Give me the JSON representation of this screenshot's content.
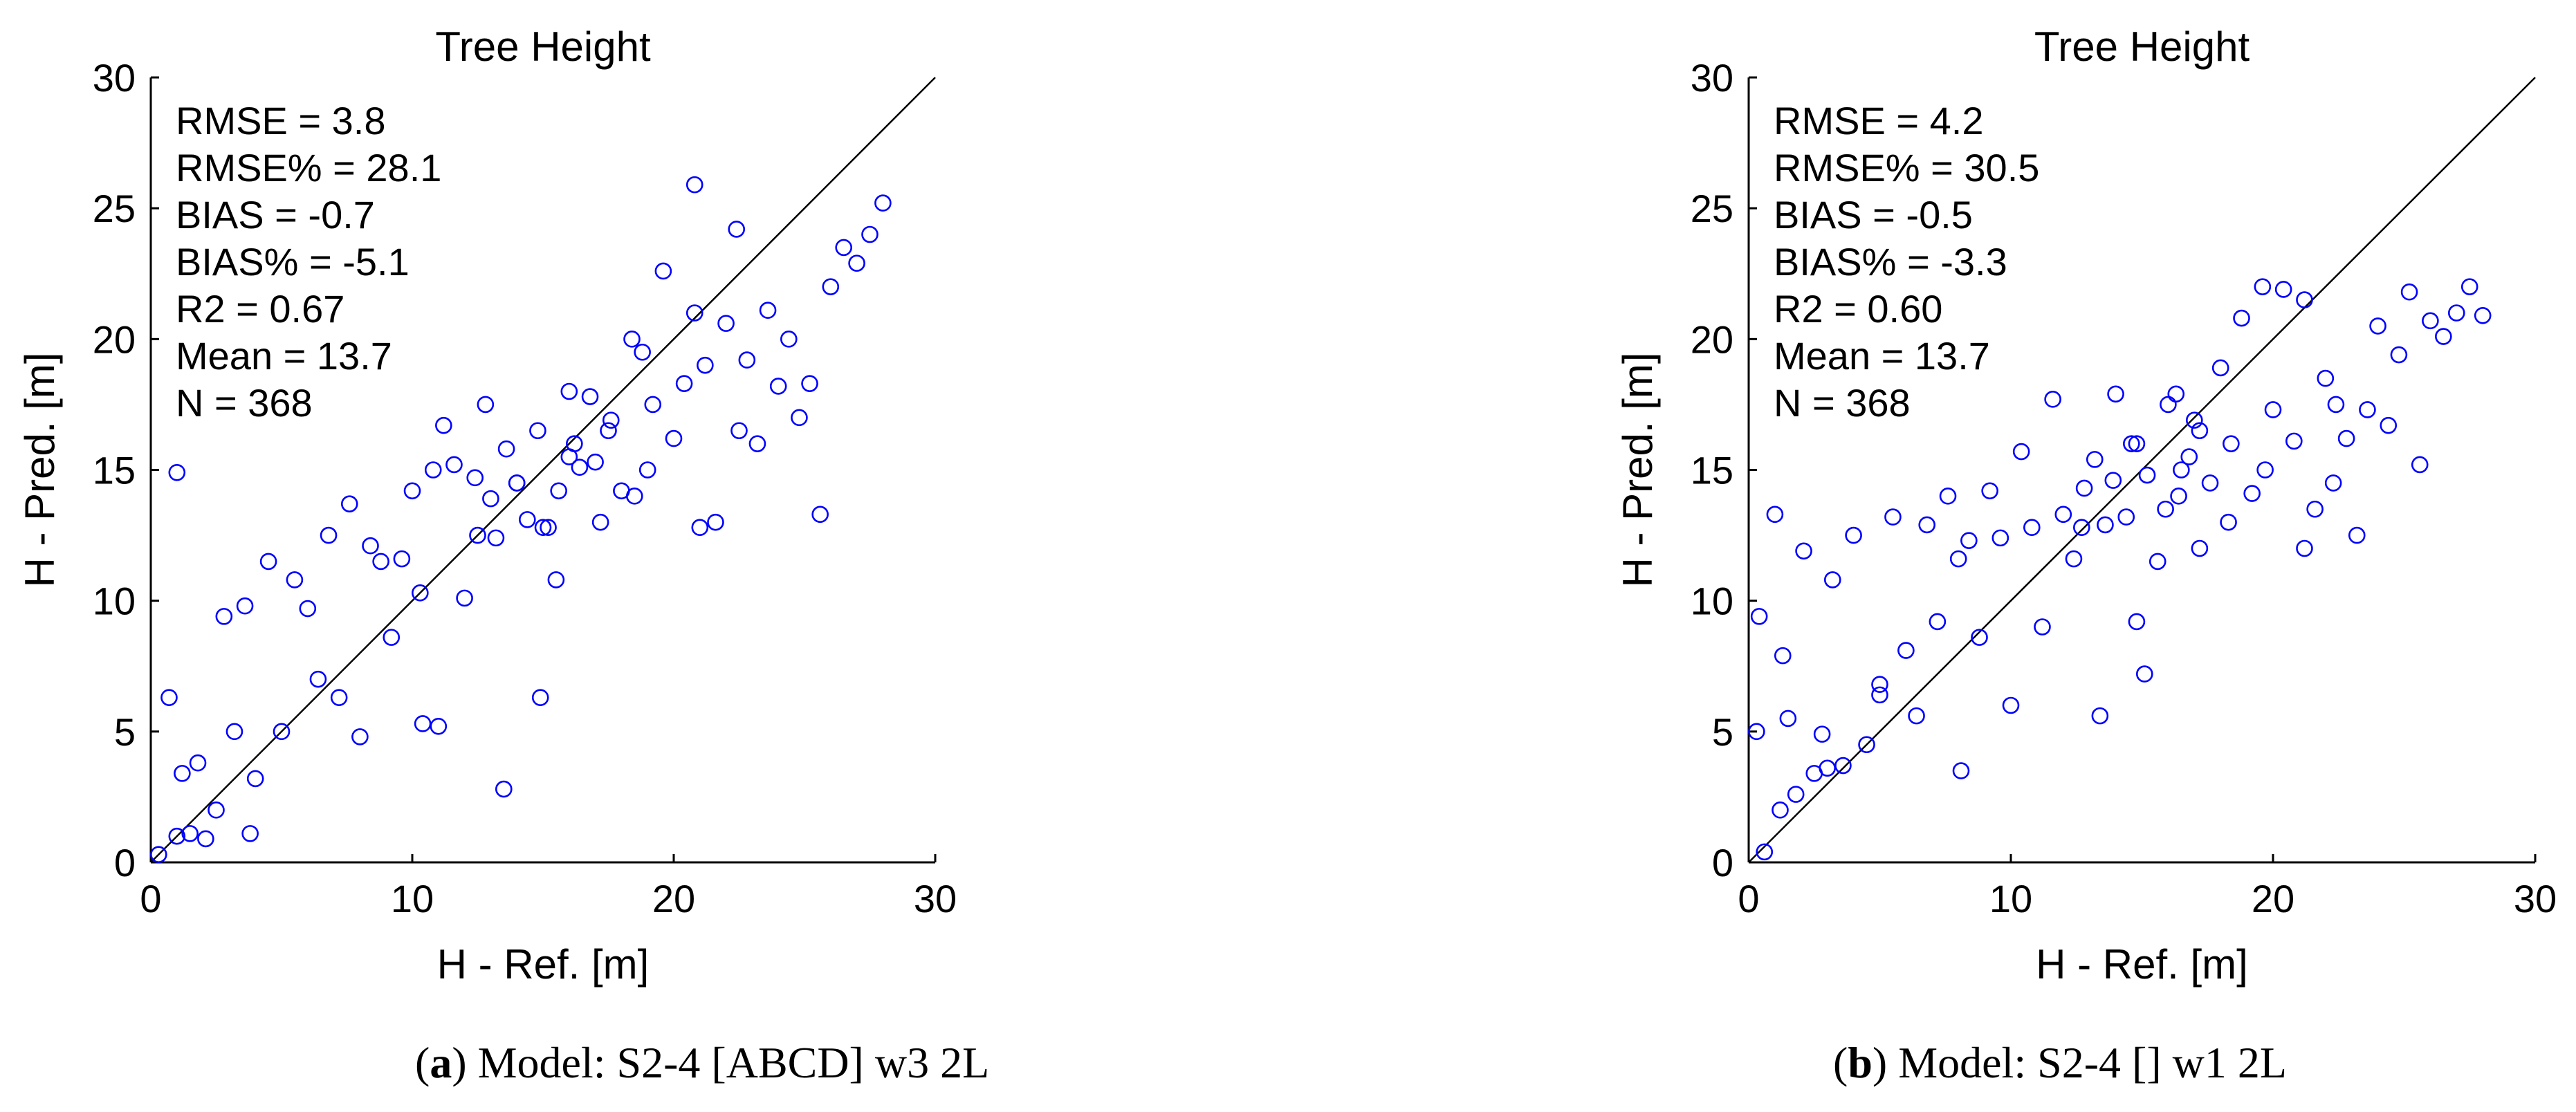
{
  "figure_panels": [
    {
      "caption_letter": "a",
      "caption_text": "Model: S2-4 [ABCD] w3 2L"
    },
    {
      "caption_letter": "b",
      "caption_text": "Model: S2-4 [] w1 2L"
    }
  ],
  "chart_data": [
    {
      "type": "scatter",
      "title": "Tree Height",
      "xlabel": "H - Ref. [m]",
      "ylabel": "H - Pred. [m]",
      "xlim": [
        0,
        30
      ],
      "ylim": [
        0,
        30
      ],
      "xticks": [
        "0",
        "10",
        "20",
        "30"
      ],
      "yticks": [
        "0",
        "5",
        "10",
        "15",
        "20",
        "25",
        "30"
      ],
      "reference_line": "1:1",
      "marker_color": "#0000ff",
      "stats": [
        "RMSE = 3.8",
        "RMSE% = 28.1",
        "BIAS = -0.7",
        "BIAS% = -5.1",
        "R2 = 0.67",
        "Mean = 13.7",
        "N = 368"
      ],
      "x": [
        0.3,
        0.7,
        1.0,
        1.2,
        1.5,
        1.8,
        2.1,
        2.5,
        2.8,
        3.2,
        3.6,
        4.0,
        4.5,
        5.0,
        5.5,
        6.0,
        6.4,
        6.8,
        7.2,
        7.6,
        8.0,
        8.4,
        8.8,
        9.2,
        9.6,
        10.0,
        10.4,
        10.8,
        11.2,
        11.6,
        12.0,
        12.4,
        12.8,
        13.2,
        13.6,
        14.0,
        14.4,
        14.8,
        15.2,
        15.6,
        16.0,
        16.4,
        16.8,
        17.2,
        17.6,
        18.0,
        18.4,
        18.8,
        19.2,
        19.6,
        20.0,
        20.4,
        20.8,
        21.2,
        21.6,
        22.0,
        22.4,
        22.8,
        23.2,
        23.6,
        24.0,
        24.4,
        24.8,
        25.2,
        25.6,
        26.0,
        26.5,
        27.0,
        27.5,
        28.0,
        1.0,
        20.8,
        13.5,
        3.8,
        10.3,
        11.0,
        14.9,
        15.5,
        16.2,
        17.0,
        15.0,
        16.0,
        17.5,
        12.5,
        13.0,
        14.0,
        18.5,
        19.0,
        21.0,
        22.5
      ],
      "y": [
        0.3,
        6.3,
        14.9,
        3.4,
        1.1,
        3.8,
        0.9,
        2.0,
        9.4,
        5.0,
        9.8,
        3.2,
        11.5,
        5.0,
        10.8,
        9.7,
        7.0,
        12.5,
        6.3,
        13.7,
        4.8,
        12.1,
        11.5,
        8.6,
        11.6,
        14.2,
        5.3,
        15.0,
        16.7,
        15.2,
        10.1,
        14.7,
        17.5,
        12.4,
        15.8,
        14.5,
        13.1,
        16.5,
        12.8,
        14.2,
        18.0,
        15.1,
        17.8,
        13.0,
        16.9,
        14.2,
        20.0,
        19.5,
        17.5,
        22.6,
        16.2,
        18.3,
        21.0,
        19.0,
        13.0,
        20.6,
        24.2,
        19.2,
        16.0,
        21.1,
        18.2,
        20.0,
        17.0,
        18.3,
        13.3,
        22.0,
        23.5,
        22.9,
        24.0,
        25.2,
        1.0,
        25.9,
        2.8,
        1.1,
        10.3,
        5.2,
        6.3,
        10.8,
        16.0,
        15.3,
        12.8,
        15.5,
        16.5,
        12.5,
        13.9,
        14.5,
        14.0,
        15.0,
        12.8,
        16.5
      ]
    },
    {
      "type": "scatter",
      "title": "Tree Height",
      "xlabel": "H - Ref. [m]",
      "ylabel": "H - Pred. [m]",
      "xlim": [
        0,
        30
      ],
      "ylim": [
        0,
        30
      ],
      "xticks": [
        "0",
        "10",
        "20",
        "30"
      ],
      "yticks": [
        "0",
        "5",
        "10",
        "15",
        "20",
        "25",
        "30"
      ],
      "reference_line": "1:1",
      "marker_color": "#0000ff",
      "stats": [
        "RMSE = 4.2",
        "RMSE% = 30.5",
        "BIAS = -0.5",
        "BIAS% = -3.3",
        "R2 = 0.60",
        "Mean = 13.7",
        "N = 368"
      ],
      "x": [
        0.4,
        0.6,
        1.0,
        1.2,
        1.5,
        1.8,
        2.1,
        2.5,
        2.8,
        3.2,
        3.6,
        4.0,
        4.5,
        5.0,
        5.5,
        6.0,
        6.4,
        6.8,
        7.2,
        7.6,
        8.0,
        8.4,
        8.8,
        9.2,
        9.6,
        10.0,
        10.4,
        10.8,
        11.2,
        11.6,
        12.0,
        12.4,
        12.8,
        13.2,
        13.6,
        14.0,
        14.4,
        14.8,
        15.2,
        15.6,
        16.0,
        16.4,
        16.8,
        17.2,
        17.6,
        18.0,
        18.4,
        18.8,
        19.2,
        19.6,
        20.0,
        20.4,
        20.8,
        21.2,
        21.6,
        22.0,
        22.4,
        22.8,
        23.2,
        23.6,
        24.0,
        24.4,
        24.8,
        25.2,
        25.6,
        26.0,
        26.5,
        27.0,
        27.5,
        28.0,
        0.3,
        1.3,
        3.0,
        5.0,
        8.1,
        13.4,
        15.1,
        14.8,
        16.3,
        17.2,
        15.9,
        16.5,
        17.0,
        12.7,
        13.9,
        14.6,
        18.3,
        19.7,
        21.2,
        22.3
      ],
      "y": [
        9.4,
        0.4,
        13.3,
        2.0,
        5.5,
        2.6,
        11.9,
        3.4,
        4.9,
        10.8,
        3.7,
        12.5,
        4.5,
        6.8,
        13.2,
        8.1,
        5.6,
        12.9,
        9.2,
        14.0,
        11.6,
        12.3,
        8.6,
        14.2,
        12.4,
        6.0,
        15.7,
        12.8,
        9.0,
        17.7,
        13.3,
        11.6,
        14.3,
        15.4,
        12.9,
        17.9,
        13.2,
        16.0,
        14.8,
        11.5,
        17.5,
        14.0,
        15.5,
        12.0,
        14.5,
        18.9,
        16.0,
        20.8,
        14.1,
        22.0,
        17.3,
        21.9,
        16.1,
        21.5,
        13.5,
        18.5,
        17.5,
        16.2,
        12.5,
        17.3,
        20.5,
        16.7,
        19.4,
        21.8,
        15.2,
        20.7,
        20.1,
        21.0,
        22.0,
        20.9,
        5.0,
        7.9,
        3.6,
        6.4,
        3.5,
        5.6,
        7.2,
        9.2,
        17.9,
        16.5,
        13.5,
        15.0,
        16.9,
        12.8,
        14.6,
        16.0,
        13.0,
        15.0,
        12.0,
        14.5
      ]
    }
  ]
}
